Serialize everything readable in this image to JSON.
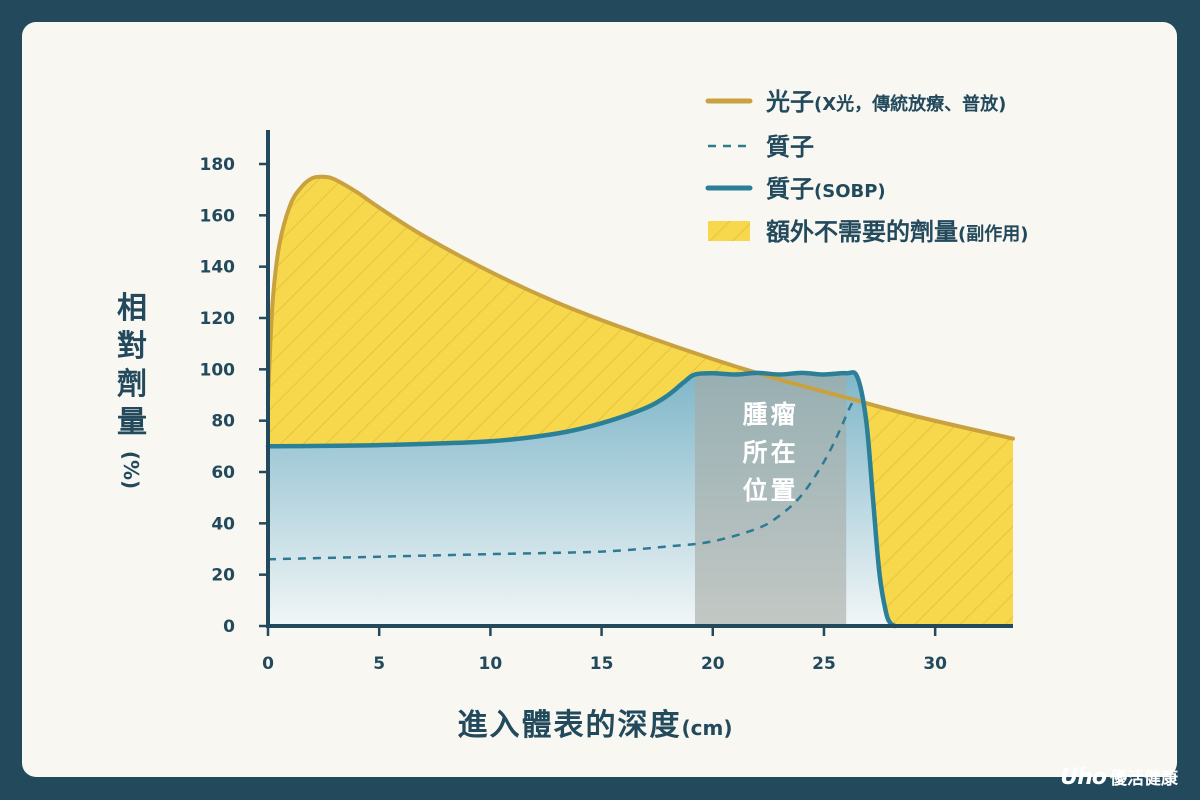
{
  "chart_data": {
    "type": "area",
    "xlabel": "進入體表的深度",
    "xlabel_unit": "(cm)",
    "ylabel": [
      "相",
      "對",
      "劑",
      "量"
    ],
    "ylabel_unit": "(%)",
    "xlim": [
      0,
      33.5
    ],
    "ylim": [
      0,
      180
    ],
    "xticks": [
      0,
      5,
      10,
      15,
      20,
      25,
      30
    ],
    "yticks": [
      0,
      20,
      40,
      60,
      80,
      100,
      120,
      140,
      160,
      180
    ],
    "legend_position": "top-right",
    "series": [
      {
        "name": "光子",
        "name_note": "(X光，傳統放療、普放)",
        "style": "solid",
        "color": "#c9a23f",
        "x": [
          0,
          0.2,
          0.5,
          1.0,
          1.5,
          2.0,
          2.5,
          3.0,
          4.0,
          5.0,
          7.0,
          10.0,
          13.0,
          16.0,
          20.0,
          23.0,
          26.0,
          29.0,
          33.5
        ],
        "y": [
          88,
          125,
          148,
          164,
          171,
          174.5,
          175,
          174,
          169,
          163,
          152,
          138,
          126,
          116,
          104,
          96,
          89,
          82,
          73
        ]
      },
      {
        "name": "質子",
        "name_note": "",
        "style": "dashed",
        "color": "#2e7a93",
        "x": [
          0,
          5,
          10,
          15,
          18,
          20,
          22,
          23,
          24,
          25,
          25.7,
          26.1,
          26.4
        ],
        "y": [
          26,
          27,
          28,
          29,
          31,
          33,
          38,
          43,
          51,
          64,
          76,
          84,
          89
        ]
      },
      {
        "name": "質子",
        "name_note": "(SOBP)",
        "style": "solid",
        "color": "#2b8098",
        "x": [
          0,
          5,
          10,
          13,
          15,
          17,
          18,
          18.7,
          19.2,
          20,
          21,
          22,
          23,
          24,
          25,
          26,
          26.5,
          26.9,
          27.2,
          27.5,
          27.8,
          28.0,
          28.2
        ],
        "y": [
          70,
          70.5,
          72,
          75,
          79,
          85,
          90,
          95,
          98,
          98.5,
          98,
          98.6,
          98,
          98.6,
          98,
          98.5,
          97,
          80,
          50,
          20,
          5,
          1,
          0
        ]
      }
    ],
    "extra_dose": {
      "name": "額外不需要的劑量",
      "name_note": "(副作用)",
      "color": "#f7d84c"
    },
    "tumor_region": {
      "x_start": 19.2,
      "x_end": 26.0,
      "label": [
        "腫瘤",
        "所在",
        "位置"
      ]
    }
  },
  "brand": {
    "logo": "Uho",
    "name": "優活健康"
  }
}
